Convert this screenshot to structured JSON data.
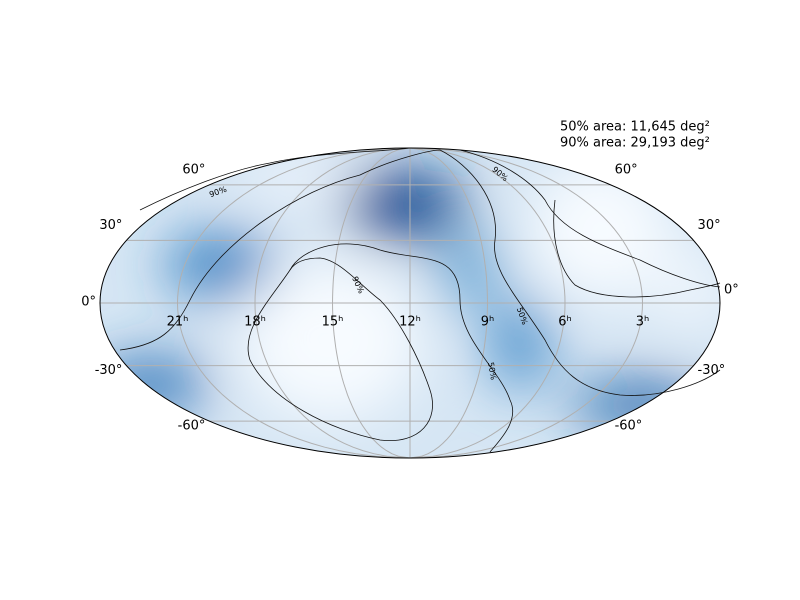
{
  "map": {
    "projection": "mollweide",
    "annotation": [
      "50% area: 11,645 deg²",
      "90% area: 29,193 deg²"
    ],
    "ra_ticks": [
      {
        "value": 21,
        "label": "21ʰ"
      },
      {
        "value": 18,
        "label": "18ʰ"
      },
      {
        "value": 15,
        "label": "15ʰ"
      },
      {
        "value": 12,
        "label": "12ʰ"
      },
      {
        "value": 9,
        "label": "9ʰ"
      },
      {
        "value": 6,
        "label": "6ʰ"
      },
      {
        "value": 3,
        "label": "3ʰ"
      }
    ],
    "dec_ticks": [
      {
        "value": 60,
        "label": "60°"
      },
      {
        "value": 30,
        "label": "30°"
      },
      {
        "value": 0,
        "label": "0°"
      },
      {
        "value": -30,
        "label": "-30°"
      },
      {
        "value": -60,
        "label": "-60°"
      }
    ],
    "contour_labels": [
      "90%",
      "90%",
      "90%",
      "50%",
      "50%"
    ],
    "grid": true
  }
}
